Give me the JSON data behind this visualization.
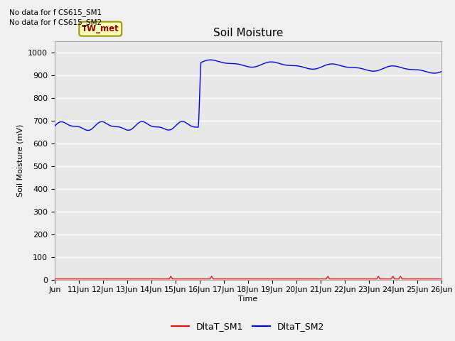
{
  "title": "Soil Moisture",
  "ylabel": "Soil Moisture (mV)",
  "xlabel": "Time",
  "ylim": [
    0,
    1050
  ],
  "yticks": [
    0,
    100,
    200,
    300,
    400,
    500,
    600,
    700,
    800,
    900,
    1000
  ],
  "bg_color": "#e8e8e8",
  "fig_color": "#f0f0f0",
  "grid_color": "#ffffff",
  "annotation_lines": [
    "No data for f CS615_SM1",
    "No data for f CS615_SM2"
  ],
  "tw_met_label": "TW_met",
  "legend_entries": [
    "DltaT_SM1",
    "DltaT_SM2"
  ],
  "sm1_color": "#ff0000",
  "sm2_color": "#0000ff",
  "title_fontsize": 11,
  "axis_fontsize": 8,
  "ylabel_fontsize": 8
}
